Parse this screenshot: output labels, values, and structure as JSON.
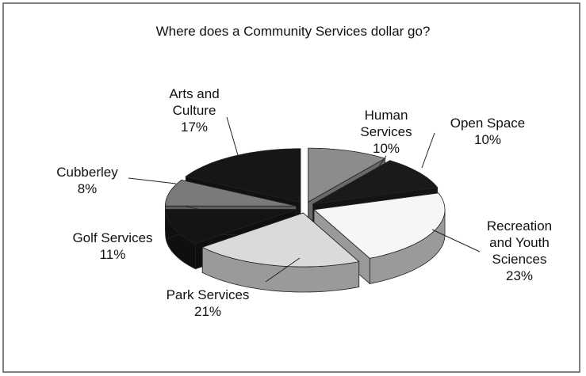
{
  "chart_data": {
    "type": "pie",
    "title": "Where does a Community Services dollar go?",
    "categories": [
      "Human Services",
      "Open Space",
      "Recreation and Youth Sciences",
      "Park Services",
      "Golf Services",
      "Cubberley",
      "Arts and Culture"
    ],
    "values": [
      10,
      10,
      23,
      21,
      11,
      8,
      17
    ],
    "value_labels": [
      "10%",
      "10%",
      "23%",
      "21%",
      "11%",
      "8%",
      "17%"
    ],
    "colors": [
      "#8c8c8c",
      "#1a1a1a",
      "#f6f6f6",
      "#dadada",
      "#141414",
      "#7a7a7a",
      "#161616"
    ]
  }
}
